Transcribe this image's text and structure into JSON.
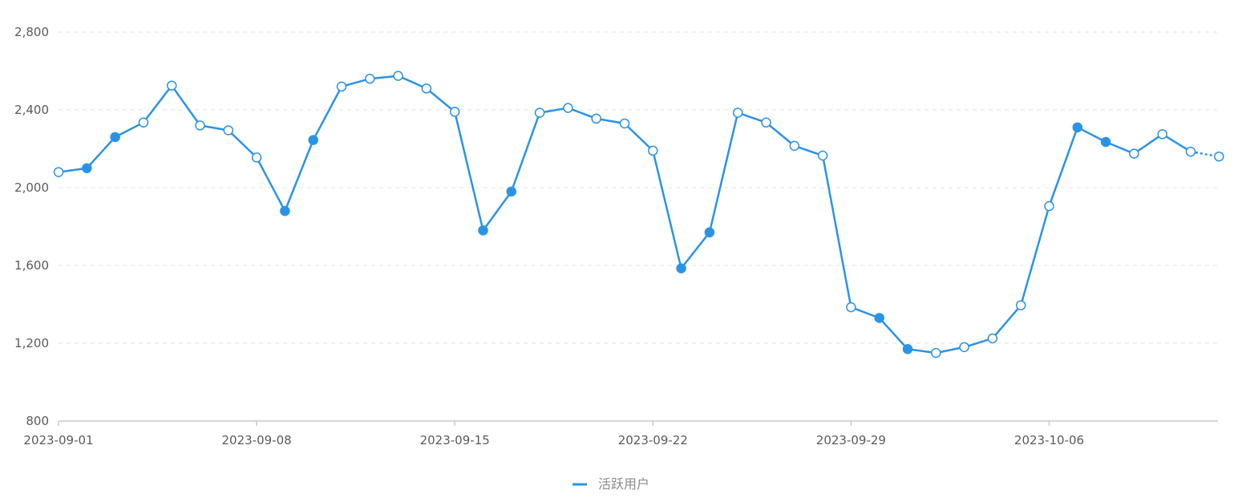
{
  "chart_data": {
    "type": "line",
    "x_label_ticks": [
      "2023-09-01",
      "2023-09-08",
      "2023-09-15",
      "2023-09-22",
      "2023-09-29",
      "2023-10-06"
    ],
    "y_ticks": [
      "800",
      "1,200",
      "1,600",
      "2,000",
      "2,400",
      "2,800"
    ],
    "ylim": [
      800,
      2800
    ],
    "grid": true,
    "legend_position": "bottom",
    "series": [
      {
        "name": "活跃用户",
        "color": "#2b93e6",
        "x": [
          "2023-09-01",
          "2023-09-02",
          "2023-09-03",
          "2023-09-04",
          "2023-09-05",
          "2023-09-06",
          "2023-09-07",
          "2023-09-08",
          "2023-09-09",
          "2023-09-10",
          "2023-09-11",
          "2023-09-12",
          "2023-09-13",
          "2023-09-14",
          "2023-09-15",
          "2023-09-16",
          "2023-09-17",
          "2023-09-18",
          "2023-09-19",
          "2023-09-20",
          "2023-09-21",
          "2023-09-22",
          "2023-09-23",
          "2023-09-24",
          "2023-09-25",
          "2023-09-26",
          "2023-09-27",
          "2023-09-28",
          "2023-09-29",
          "2023-09-30",
          "2023-10-01",
          "2023-10-02",
          "2023-10-03",
          "2023-10-04",
          "2023-10-05",
          "2023-10-06",
          "2023-10-07",
          "2023-10-08",
          "2023-10-09",
          "2023-10-10",
          "2023-10-11",
          "2023-10-12"
        ],
        "values": [
          2080,
          2100,
          2260,
          2335,
          2525,
          2320,
          2295,
          2155,
          1880,
          2245,
          2520,
          2560,
          2575,
          2510,
          2390,
          1780,
          1980,
          2385,
          2410,
          2355,
          2330,
          2190,
          1585,
          1770,
          2385,
          2335,
          2215,
          2165,
          1385,
          1330,
          1170,
          1150,
          1180,
          1225,
          1395,
          1905,
          2310,
          2235,
          2175,
          2275,
          2185,
          2160
        ],
        "filled_markers": [
          false,
          true,
          true,
          false,
          false,
          false,
          false,
          false,
          true,
          true,
          false,
          false,
          false,
          false,
          false,
          true,
          true,
          false,
          false,
          false,
          false,
          false,
          true,
          true,
          false,
          false,
          false,
          false,
          false,
          true,
          true,
          false,
          false,
          false,
          false,
          false,
          true,
          true,
          false,
          false,
          false,
          false
        ],
        "dashed_last_segment": true
      }
    ]
  }
}
